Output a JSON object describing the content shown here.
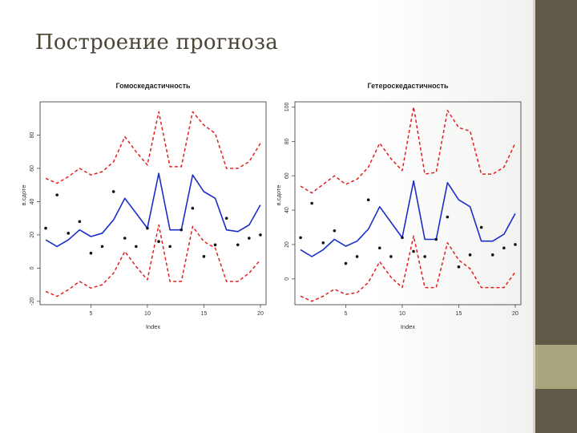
{
  "slide": {
    "title": "Построение прогноза",
    "colors": {
      "sidebar": "#5f5a47",
      "accent": "#a9a57d",
      "title": "#4a4535"
    }
  },
  "chart_data": [
    {
      "type": "line",
      "title": "Гомоскедастичность",
      "xlabel": "Index",
      "ylabel": "в.сдоте",
      "x": [
        1,
        2,
        3,
        4,
        5,
        6,
        7,
        8,
        9,
        10,
        11,
        12,
        13,
        14,
        15,
        16,
        17,
        18,
        19,
        20
      ],
      "xlim": [
        0.5,
        20.5
      ],
      "ylim": [
        -22,
        100
      ],
      "xticks": [
        5,
        10,
        15,
        20
      ],
      "yticks": [
        -20,
        0,
        20,
        40,
        60,
        80
      ],
      "series": [
        {
          "name": "forecast",
          "style": "solid",
          "color": "#1a2ec8",
          "values": [
            17,
            13,
            17,
            23,
            19,
            21,
            29,
            42,
            33,
            24,
            57,
            23,
            23,
            56,
            46,
            42,
            23,
            22,
            26,
            38
          ]
        },
        {
          "name": "upper",
          "style": "dashed",
          "color": "#e02020",
          "values": [
            54,
            51,
            55,
            60,
            56,
            58,
            64,
            79,
            70,
            62,
            94,
            61,
            61,
            94,
            86,
            81,
            60,
            60,
            64,
            75
          ]
        },
        {
          "name": "lower",
          "style": "dashed",
          "color": "#e02020",
          "values": [
            -14,
            -17,
            -13,
            -8,
            -12,
            -10,
            -3,
            10,
            1,
            -7,
            26,
            -8,
            -8,
            25,
            16,
            12,
            -8,
            -8,
            -3,
            5
          ]
        },
        {
          "name": "observed",
          "style": "points",
          "color": "#111111",
          "values": [
            24,
            44,
            21,
            28,
            9,
            13,
            46,
            18,
            13,
            24,
            16,
            13,
            23,
            36,
            7,
            14,
            30,
            14,
            18,
            20
          ]
        }
      ]
    },
    {
      "type": "line",
      "title": "Гетероскедастичность",
      "xlabel": "Index",
      "ylabel": "в.сдоте",
      "x": [
        1,
        2,
        3,
        4,
        5,
        6,
        7,
        8,
        9,
        10,
        11,
        12,
        13,
        14,
        15,
        16,
        17,
        18,
        19,
        20
      ],
      "xlim": [
        0.5,
        20.5
      ],
      "ylim": [
        -15,
        103
      ],
      "xticks": [
        5,
        10,
        15,
        20
      ],
      "yticks": [
        0,
        20,
        40,
        60,
        80,
        100
      ],
      "series": [
        {
          "name": "forecast",
          "style": "solid",
          "color": "#1a2ec8",
          "values": [
            17,
            13,
            17,
            23,
            19,
            22,
            29,
            42,
            33,
            24,
            57,
            23,
            23,
            56,
            46,
            42,
            22,
            22,
            26,
            38
          ]
        },
        {
          "name": "upper",
          "style": "dashed",
          "color": "#e02020",
          "values": [
            54,
            50,
            55,
            60,
            55,
            58,
            65,
            79,
            70,
            63,
            100,
            61,
            62,
            98,
            88,
            86,
            61,
            61,
            65,
            79
          ]
        },
        {
          "name": "lower",
          "style": "dashed",
          "color": "#e02020",
          "values": [
            -10,
            -13,
            -10,
            -6,
            -9,
            -8,
            -2,
            10,
            1,
            -5,
            25,
            -5,
            -5,
            21,
            11,
            6,
            -5,
            -5,
            -5,
            4
          ]
        },
        {
          "name": "observed",
          "style": "points",
          "color": "#111111",
          "values": [
            24,
            44,
            21,
            28,
            9,
            13,
            46,
            18,
            13,
            24,
            16,
            13,
            23,
            36,
            7,
            14,
            30,
            14,
            18,
            20
          ]
        }
      ]
    }
  ]
}
